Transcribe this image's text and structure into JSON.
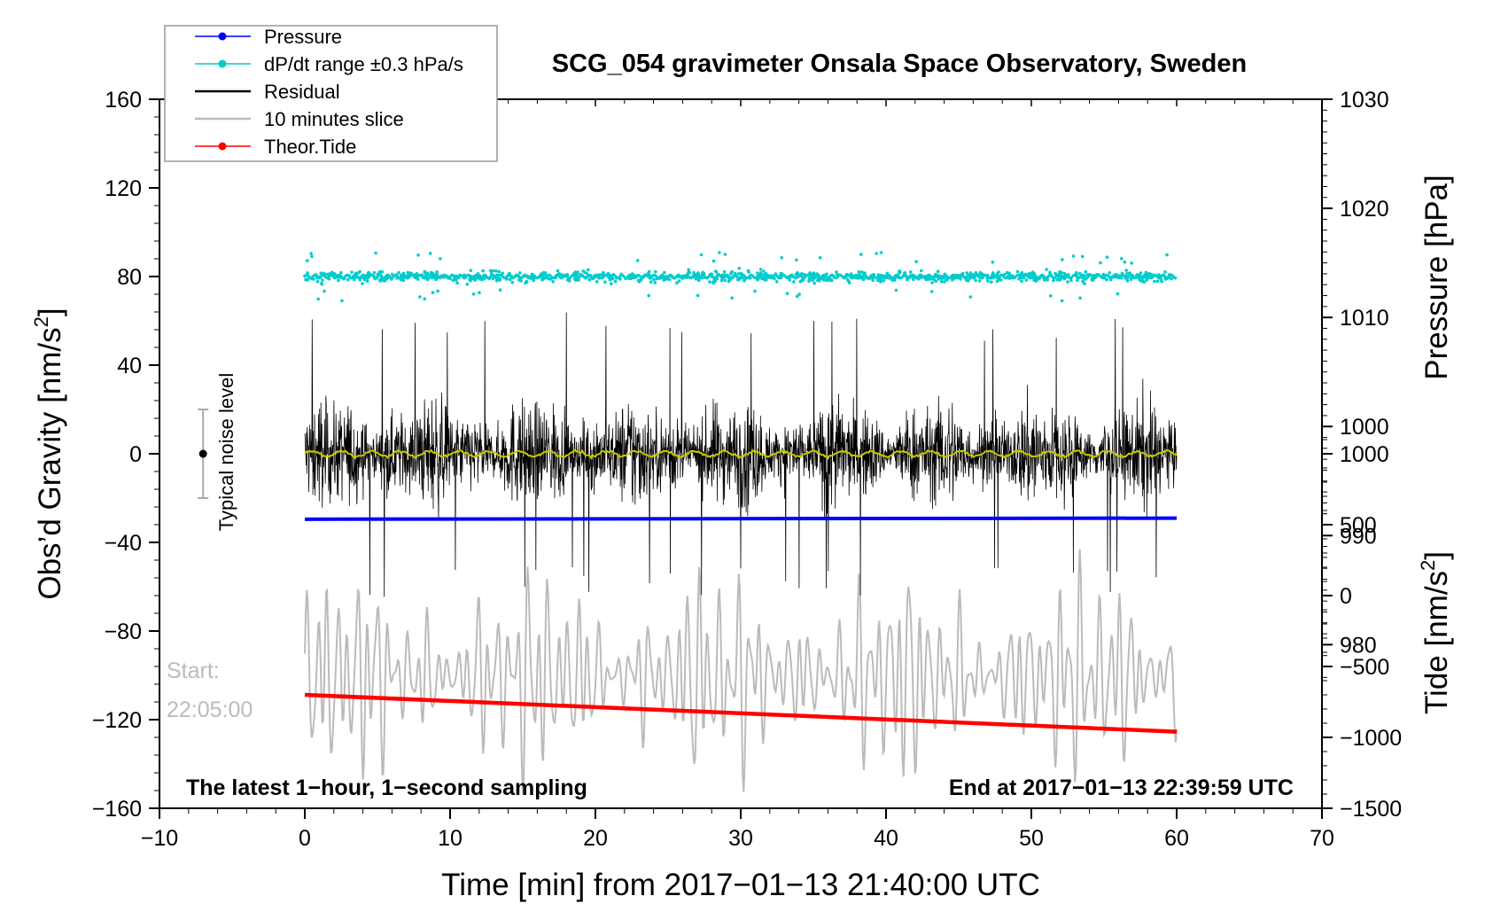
{
  "chart_data": {
    "type": "line",
    "title": "SCG_054 gravimeter Onsala Space Observatory, Sweden",
    "xlabel": "Time [min] from 2017−01−13 21:40:00 UTC",
    "ylabel_left_prefix": "Obs’d Gravity [nm/s",
    "ylabel_left_sup": "2",
    "ylabel_left_suffix": "]",
    "ylabel_right_top": "Pressure [hPa]",
    "ylabel_right_bottom_prefix": "Tide [nm/s",
    "ylabel_right_bottom_sup": "2",
    "ylabel_right_bottom_suffix": "]",
    "xlim": [
      -10,
      70
    ],
    "ylim_left": [
      -160,
      160
    ],
    "ylim_pressure": [
      965,
      1030
    ],
    "ylim_tide": [
      -1500,
      3500
    ],
    "x_ticks": [
      "−10",
      "0",
      "10",
      "20",
      "30",
      "40",
      "50",
      "60",
      "70"
    ],
    "x_tick_values": [
      -10,
      0,
      10,
      20,
      30,
      40,
      50,
      60,
      70
    ],
    "y_left_ticks": [
      "160",
      "120",
      "80",
      "40",
      "0",
      "−40",
      "−80",
      "−120",
      "−160"
    ],
    "y_left_tick_values": [
      160,
      120,
      80,
      40,
      0,
      -40,
      -80,
      -120,
      -160
    ],
    "y_pressure_ticks": [
      "1030",
      "1020",
      "1010",
      "1000",
      "990",
      "980"
    ],
    "y_pressure_tick_values": [
      1030,
      1020,
      1010,
      1000,
      990,
      980
    ],
    "y_tide_ticks": [
      "1000",
      "500",
      "0",
      "−500",
      "−1000",
      "−1500"
    ],
    "y_tide_tick_values": [
      1000,
      500,
      0,
      -500,
      -1000,
      -1500
    ],
    "legend": [
      {
        "label": "Pressure",
        "color": "#0000ff",
        "marker": true
      },
      {
        "label": "dP/dt range ±0.3 hPa/s",
        "color": "#00cccc",
        "marker": true
      },
      {
        "label": "Residual",
        "color": "#000000",
        "marker": false
      },
      {
        "label": "10 minutes slice",
        "color": "#bbbbbb",
        "marker": false
      },
      {
        "label": "Theor.Tide",
        "color": "#ff0000",
        "marker": true
      }
    ],
    "series": [
      {
        "name": "Pressure",
        "axis": "pressure",
        "color": "#0000ff",
        "x_range": [
          0,
          60
        ],
        "start": 991.5,
        "end": 991.6
      },
      {
        "name": "dP/dt range ±0.3 hPa/s",
        "axis": "left",
        "color": "#00cccc",
        "x_range": [
          0,
          60
        ],
        "center": 80,
        "spread": 5
      },
      {
        "name": "Residual",
        "axis": "left",
        "color": "#000000",
        "x_range": [
          0,
          60
        ],
        "center": 0,
        "amplitude": 35
      },
      {
        "name": "10 minutes slice",
        "axis": "left",
        "color": "#bbbbbb",
        "x_range": [
          0,
          60
        ],
        "center": -100,
        "amplitude": 35
      },
      {
        "name": "Theor.Tide",
        "axis": "tide",
        "color": "#ff0000",
        "x_range": [
          0,
          60
        ],
        "start": -700,
        "end": -960
      },
      {
        "name": "Smoothed residual",
        "axis": "left",
        "color": "#c8c800",
        "x_range": [
          0,
          60
        ],
        "center": 0,
        "amplitude": 2
      }
    ],
    "noise_bar": {
      "label": "Typical noise level",
      "x": -7,
      "center": 0,
      "half_range": 20
    },
    "annotations": {
      "start_label": "Start:",
      "start_time": "22:05:00",
      "bottom_left": "The latest 1−hour, 1−second sampling",
      "bottom_right": "End at 2017−01−13 22:39:59 UTC"
    }
  },
  "colors": {
    "pressure": "#0000ff",
    "dpdt": "#00cccc",
    "residual": "#000000",
    "slice": "#bbbbbb",
    "tide": "#ff0000",
    "smooth": "#c8c800"
  }
}
